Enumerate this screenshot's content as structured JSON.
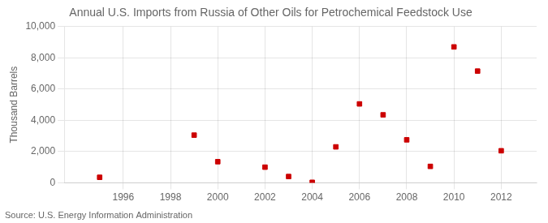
{
  "chart_data": {
    "type": "scatter",
    "title": "Annual U.S. Imports from Russia of Other Oils for Petrochemical Feedstock Use",
    "ylabel": "Thousand Barrels",
    "source": "Source: U.S. Energy Information Administration",
    "x": [
      1995,
      1999,
      2000,
      2002,
      2003,
      2004,
      2005,
      2006,
      2007,
      2008,
      2009,
      2010,
      2011,
      2012
    ],
    "values": [
      350,
      3050,
      1350,
      1000,
      400,
      30,
      2300,
      5050,
      4350,
      2750,
      1050,
      8700,
      7150,
      2050
    ],
    "color": "#cc0000",
    "marker": "square",
    "xlim": [
      1993.5,
      2013.5
    ],
    "ylim": [
      0,
      10000
    ],
    "xticks": [
      1996,
      1998,
      2000,
      2002,
      2004,
      2006,
      2008,
      2010,
      2012
    ],
    "yticks": [
      0,
      {
        "value": 2000,
        "label": "2,000"
      },
      {
        "value": 4000,
        "label": "4,000"
      },
      {
        "value": 6000,
        "label": "6,000"
      },
      {
        "value": 8000,
        "label": "8,000"
      },
      {
        "value": 10000,
        "label": "10,000"
      }
    ],
    "grid": true
  }
}
